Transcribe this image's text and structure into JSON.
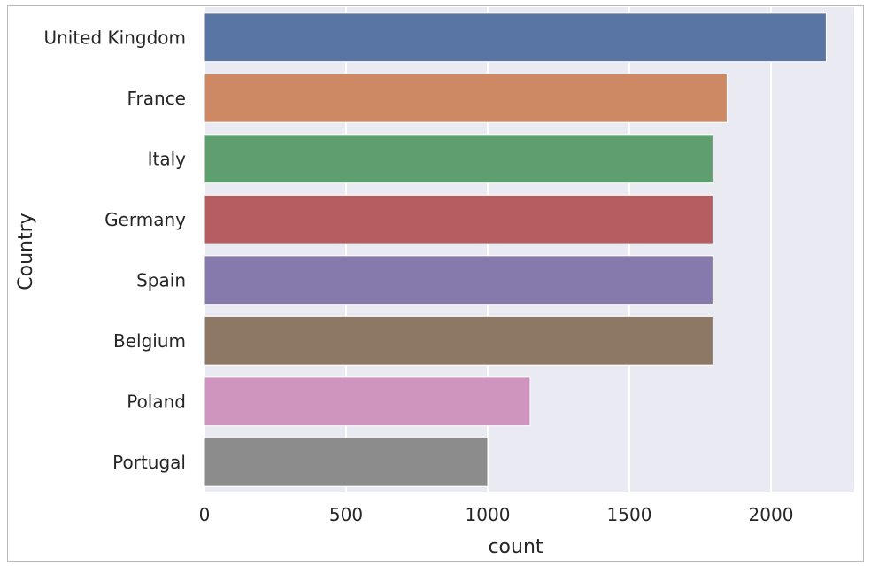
{
  "chart_data": {
    "type": "bar",
    "orientation": "horizontal",
    "categories": [
      "United Kingdom",
      "France",
      "Italy",
      "Germany",
      "Spain",
      "Belgium",
      "Poland",
      "Portugal"
    ],
    "values": [
      2195,
      1845,
      1795,
      1795,
      1795,
      1795,
      1150,
      1000
    ],
    "colors": [
      "#5875A4",
      "#CC8963",
      "#5F9E6E",
      "#B55D60",
      "#857AAB",
      "#8D7866",
      "#D095BF",
      "#8C8C8C"
    ],
    "xlabel": "count",
    "ylabel": "Country",
    "xlim": [
      0,
      2300
    ],
    "xticks": [
      0,
      500,
      1000,
      1500,
      2000
    ],
    "xtick_labels": [
      "0",
      "500",
      "1000",
      "1500",
      "2000"
    ],
    "grid": true,
    "background": "#EAEAF2"
  }
}
